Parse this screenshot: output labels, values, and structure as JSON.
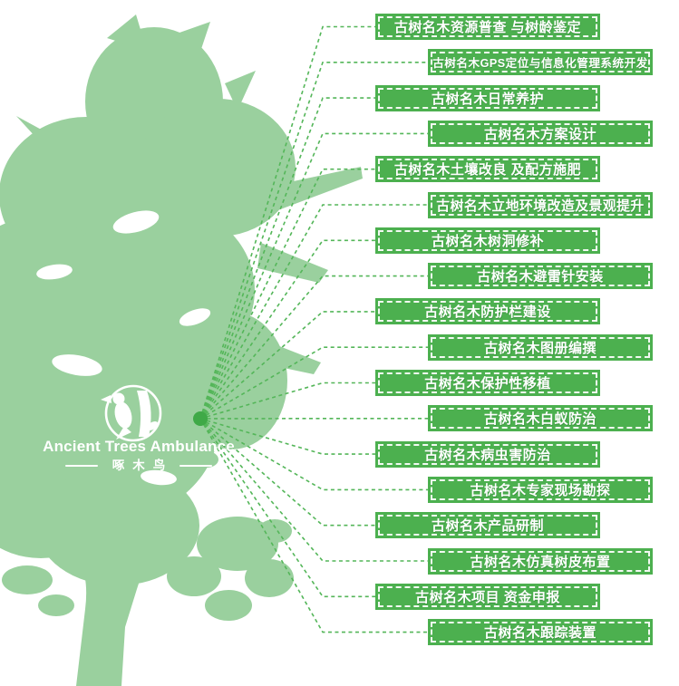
{
  "brand": {
    "name_en": "Ancient Trees Ambulance",
    "name_zh": "啄木鸟",
    "logo_icon": "woodpecker-on-tree-icon"
  },
  "diagram": {
    "description_items_prefix": "古树名木",
    "services": [
      {
        "label": "古树名木资源普查 与树龄鉴定"
      },
      {
        "label": "古树名木GPS定位与信息化管理系统开发"
      },
      {
        "label": "古树名木日常养护"
      },
      {
        "label": "古树名木方案设计"
      },
      {
        "label": "古树名木土壤改良 及配方施肥"
      },
      {
        "label": "古树名木立地环境改造及景观提升"
      },
      {
        "label": "古树名木树洞修补"
      },
      {
        "label": "古树名木避雷针安装"
      },
      {
        "label": "古树名木防护栏建设"
      },
      {
        "label": "古树名木图册编撰"
      },
      {
        "label": "古树名木保护性移植"
      },
      {
        "label": "古树名木白蚁防治"
      },
      {
        "label": "古树名木病虫害防治"
      },
      {
        "label": "古树名木专家现场勘探"
      },
      {
        "label": "古树名木产品研制"
      },
      {
        "label": "古树名木仿真树皮布置"
      },
      {
        "label": "古树名木项目 资金申报"
      },
      {
        "label": "古树名木跟踪装置"
      }
    ]
  },
  "colors": {
    "tree": "#9ad09e",
    "banner": "#4cb04f",
    "connector": "#54b659",
    "dot": "#3fa947",
    "label_text": "#ffffff"
  }
}
